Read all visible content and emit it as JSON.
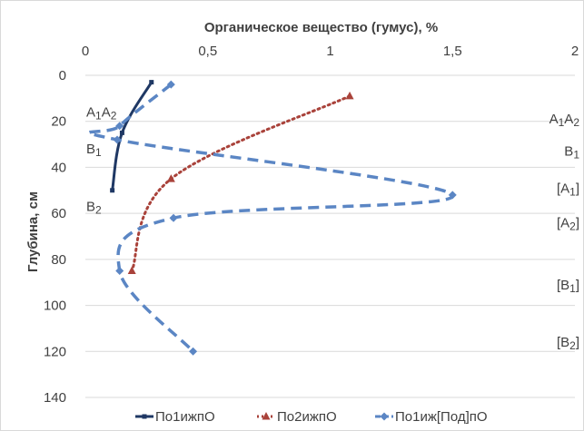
{
  "chart_data": {
    "type": "line",
    "xlabel": "Органическое вещество (гумус), %",
    "ylabel": "Глубина, см",
    "x_axis_position": "top",
    "y_axis_inverted": true,
    "xlim": [
      0,
      2
    ],
    "ylim": [
      0,
      140
    ],
    "x_ticks": [
      {
        "value": 0,
        "label": "0"
      },
      {
        "value": 0.5,
        "label": "0,5"
      },
      {
        "value": 1,
        "label": "1"
      },
      {
        "value": 1.5,
        "label": "1,5"
      },
      {
        "value": 2,
        "label": "2"
      }
    ],
    "y_ticks": [
      {
        "value": 0,
        "label": "0"
      },
      {
        "value": 20,
        "label": "20"
      },
      {
        "value": 40,
        "label": "40"
      },
      {
        "value": 60,
        "label": "60"
      },
      {
        "value": 80,
        "label": "80"
      },
      {
        "value": 100,
        "label": "100"
      },
      {
        "value": 120,
        "label": "120"
      },
      {
        "value": 140,
        "label": "140"
      }
    ],
    "grid": "horizontal",
    "legend_position": "bottom",
    "series": [
      {
        "name": "По1ижпО",
        "color": "#1f3864",
        "line_style": "solid",
        "marker": "line",
        "points": [
          {
            "x": 0.27,
            "y": 3
          },
          {
            "x": 0.15,
            "y": 25
          },
          {
            "x": 0.11,
            "y": 50
          }
        ]
      },
      {
        "name": "По2ижпО",
        "color": "#a9423a",
        "line_style": "dotted",
        "marker": "triangle",
        "points": [
          {
            "x": 1.08,
            "y": 9
          },
          {
            "x": 0.35,
            "y": 45
          },
          {
            "x": 0.19,
            "y": 85
          }
        ]
      },
      {
        "name": "По1иж[Под]пО",
        "color": "#5b86c4",
        "line_style": "dashed",
        "marker": "diamond",
        "points": [
          {
            "x": 0.35,
            "y": 4
          },
          {
            "x": 0.14,
            "y": 22
          },
          {
            "x": 0.13,
            "y": 28
          },
          {
            "x": 1.5,
            "y": 52
          },
          {
            "x": 0.36,
            "y": 62
          },
          {
            "x": 0.14,
            "y": 85
          },
          {
            "x": 0.44,
            "y": 120
          }
        ]
      }
    ],
    "horizon_labels_left": [
      {
        "main": "A",
        "sub": "1",
        "main2": "A",
        "sub2": "2",
        "depth": 16
      },
      {
        "main": "B",
        "sub": "1",
        "main2": "",
        "sub2": "",
        "depth": 32
      },
      {
        "main": "B",
        "sub": "2",
        "main2": "",
        "sub2": "",
        "depth": 57
      }
    ],
    "horizon_labels_right": [
      {
        "prefix": "",
        "main": "A",
        "sub": "1",
        "main2": "A",
        "sub2": "2",
        "suffix": "",
        "depth": 19
      },
      {
        "prefix": "",
        "main": "B",
        "sub": "1",
        "main2": "",
        "sub2": "",
        "suffix": "",
        "depth": 33
      },
      {
        "prefix": "[",
        "main": "A",
        "sub": "1",
        "main2": "",
        "sub2": "",
        "suffix": "]",
        "depth": 49
      },
      {
        "prefix": "[",
        "main": "A",
        "sub": "2",
        "main2": "",
        "sub2": "",
        "suffix": "]",
        "depth": 64
      },
      {
        "prefix": "[",
        "main": "B",
        "sub": "1",
        "main2": "",
        "sub2": "",
        "suffix": "]",
        "depth": 91
      },
      {
        "prefix": "[",
        "main": "B",
        "sub": "2",
        "main2": "",
        "sub2": "",
        "suffix": "]",
        "depth": 116
      }
    ]
  }
}
